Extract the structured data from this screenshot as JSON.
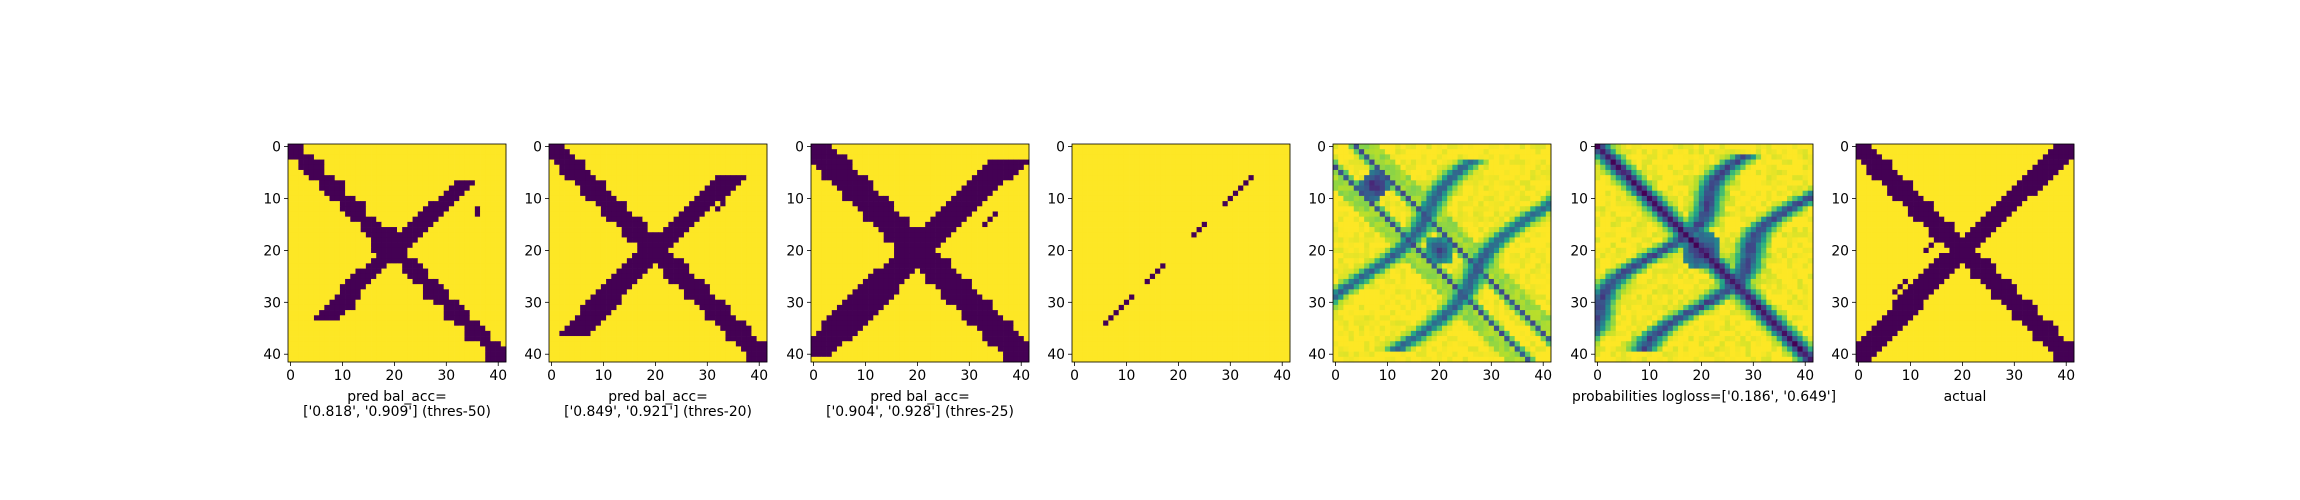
{
  "chart_data": [
    {
      "type": "heatmap",
      "kind": "prediction",
      "xlabel_lines": [
        "pred bal_acc=",
        "['0.818', '0.909'] (thres-50)"
      ],
      "xticks": [
        "0",
        "10",
        "20",
        "30",
        "40"
      ],
      "yticks": [
        "0",
        "10",
        "20",
        "30",
        "40"
      ],
      "grid_size": 42,
      "colormap": "viridis",
      "values_binary": [
        0,
        1
      ],
      "band_half_width": 1.7,
      "center_blob": {
        "center": 18.5,
        "radius": 3.2
      },
      "specks": [
        [
          12,
          36
        ],
        [
          13,
          36
        ],
        [
          30,
          11
        ],
        [
          31,
          12
        ]
      ],
      "cutoffs": {
        "main_top": 0,
        "anti_top": 7,
        "anti_bottom": 33
      }
    },
    {
      "type": "heatmap",
      "kind": "prediction",
      "xlabel_lines": [
        "pred bal_acc=",
        "['0.849', '0.921'] (thres-20)"
      ],
      "xticks": [
        "0",
        "10",
        "20",
        "30",
        "40"
      ],
      "yticks": [
        "0",
        "10",
        "20",
        "30",
        "40"
      ],
      "grid_size": 42,
      "colormap": "viridis",
      "values_binary": [
        0,
        1
      ],
      "band_half_width": 2.0,
      "center_blob": {
        "center": 19.5,
        "radius": 3.0
      },
      "specks": [
        [
          11,
          33
        ],
        [
          12,
          32
        ],
        [
          23,
          17
        ],
        [
          24,
          16
        ],
        [
          31,
          10
        ],
        [
          32,
          9
        ]
      ],
      "cutoffs": {
        "main_top": 0,
        "anti_top": 6,
        "anti_bottom": 36
      }
    },
    {
      "type": "heatmap",
      "kind": "prediction",
      "xlabel_lines": [
        "pred bal_acc=",
        "['0.904', '0.928'] (thres-25)"
      ],
      "xticks": [
        "0",
        "10",
        "20",
        "30",
        "40"
      ],
      "yticks": [
        "0",
        "10",
        "20",
        "30",
        "40"
      ],
      "grid_size": 42,
      "colormap": "viridis",
      "values_binary": [
        0,
        1
      ],
      "band_half_width": 2.6,
      "center_blob": {
        "center": 19.5,
        "radius": 3.8
      },
      "specks": [
        [
          13,
          35
        ],
        [
          14,
          34
        ],
        [
          15,
          33
        ],
        [
          29,
          13
        ],
        [
          30,
          12
        ],
        [
          31,
          11
        ],
        [
          32,
          10
        ]
      ],
      "cutoffs": {
        "main_top": 0,
        "anti_top": 3,
        "anti_bottom": 40
      }
    },
    {
      "type": "heatmap",
      "kind": "sparse",
      "xlabel_lines": [],
      "xticks": [
        "0",
        "10",
        "20",
        "30",
        "40"
      ],
      "yticks": [
        "0",
        "10",
        "20",
        "30",
        "40"
      ],
      "grid_size": 42,
      "colormap": "viridis",
      "values_binary": [
        0,
        1
      ],
      "dots": [
        [
          6,
          34
        ],
        [
          7,
          33
        ],
        [
          8,
          32
        ],
        [
          9,
          31
        ],
        [
          10,
          30
        ],
        [
          11,
          29
        ],
        [
          15,
          25
        ],
        [
          16,
          24
        ],
        [
          17,
          23
        ],
        [
          23,
          17
        ],
        [
          24,
          16
        ],
        [
          25,
          15
        ],
        [
          26,
          14
        ],
        [
          29,
          11
        ],
        [
          30,
          10
        ],
        [
          31,
          9
        ],
        [
          32,
          8
        ],
        [
          33,
          7
        ],
        [
          34,
          6
        ]
      ]
    },
    {
      "type": "heatmap",
      "kind": "prob_fine",
      "xlabel_lines": [],
      "xticks": [
        "0",
        "10",
        "20",
        "30",
        "40"
      ],
      "yticks": [
        "0",
        "10",
        "20",
        "30",
        "40"
      ],
      "grid_size": 42,
      "colormap": "viridis",
      "values_range": [
        0,
        1
      ]
    },
    {
      "type": "heatmap",
      "kind": "prob_wide",
      "xlabel_lines": [
        "probabilities logloss=['0.186', '0.649']"
      ],
      "xticks": [
        "0",
        "10",
        "20",
        "30",
        "40"
      ],
      "yticks": [
        "0",
        "10",
        "20",
        "30",
        "40"
      ],
      "grid_size": 42,
      "colormap": "viridis",
      "values_range": [
        0,
        1
      ]
    },
    {
      "type": "heatmap",
      "kind": "actual",
      "xlabel_lines": [
        "actual"
      ],
      "xticks": [
        "0",
        "10",
        "20",
        "30",
        "40"
      ],
      "yticks": [
        "0",
        "10",
        "20",
        "30",
        "40"
      ],
      "grid_size": 42,
      "colormap": "viridis",
      "values_binary": [
        0,
        1
      ],
      "band_half_width": 1.9,
      "center_blob": {
        "center": 20,
        "radius": 1.6
      },
      "specks": [
        [
          19,
          14
        ],
        [
          20,
          13
        ],
        [
          26,
          9
        ],
        [
          27,
          8
        ],
        [
          28,
          7
        ],
        [
          33,
          10
        ],
        [
          34,
          9
        ]
      ],
      "cutoffs": {
        "main_top": 0,
        "anti_top": 0,
        "anti_bottom": 42
      }
    }
  ]
}
